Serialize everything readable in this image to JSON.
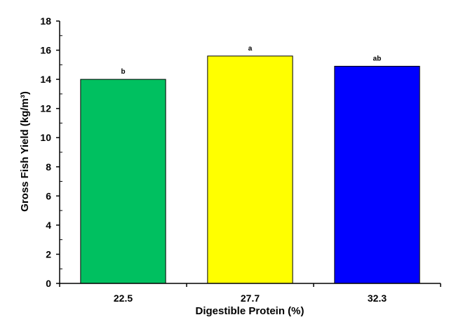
{
  "chart_data": {
    "type": "bar",
    "categories": [
      "22.5",
      "27.7",
      "32.3"
    ],
    "values": [
      14.0,
      15.6,
      14.9
    ],
    "significance_labels": [
      "b",
      "a",
      "ab"
    ],
    "bar_colors": [
      "#00c060",
      "#ffff00",
      "#0000ff"
    ],
    "xlabel": "Digestible Protein (%)",
    "ylabel": "Gross Fish Yield (kg/m³)",
    "ylim": [
      0,
      18
    ],
    "yticks": [
      0,
      2,
      4,
      6,
      8,
      10,
      12,
      14,
      16,
      18
    ],
    "grid": false,
    "legend": false
  }
}
